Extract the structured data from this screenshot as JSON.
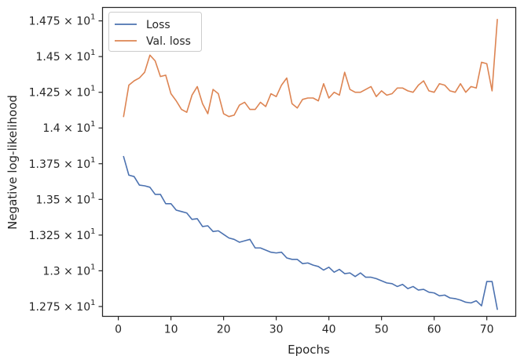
{
  "chart_data": {
    "type": "line",
    "title": "",
    "xlabel": "Epochs",
    "ylabel": "Negative log-likelihood",
    "xlim": [
      -3,
      75.5
    ],
    "ylim": [
      12.681,
      14.844
    ],
    "xticks": [
      0,
      10,
      20,
      30,
      40,
      50,
      60,
      70
    ],
    "yticks": [
      {
        "value": 12.75,
        "mantissa": "1.275",
        "base": "10",
        "exp": "1"
      },
      {
        "value": 13.0,
        "mantissa": "1.3",
        "base": "10",
        "exp": "1"
      },
      {
        "value": 13.25,
        "mantissa": "1.325",
        "base": "10",
        "exp": "1"
      },
      {
        "value": 13.5,
        "mantissa": "1.35",
        "base": "10",
        "exp": "1"
      },
      {
        "value": 13.75,
        "mantissa": "1.375",
        "base": "10",
        "exp": "1"
      },
      {
        "value": 14.0,
        "mantissa": "1.4",
        "base": "10",
        "exp": "1"
      },
      {
        "value": 14.25,
        "mantissa": "1.425",
        "base": "10",
        "exp": "1"
      },
      {
        "value": 14.5,
        "mantissa": "1.45",
        "base": "10",
        "exp": "1"
      },
      {
        "value": 14.75,
        "mantissa": "1.475",
        "base": "10",
        "exp": "1"
      }
    ],
    "grid": false,
    "legend_position": "top-left",
    "series": [
      {
        "name": "Loss",
        "color": "#4c72b0",
        "x": [
          1,
          2,
          3,
          4,
          5,
          6,
          7,
          8,
          9,
          10,
          11,
          12,
          13,
          14,
          15,
          16,
          17,
          18,
          19,
          20,
          21,
          22,
          23,
          24,
          25,
          26,
          27,
          28,
          29,
          30,
          31,
          32,
          33,
          34,
          35,
          36,
          37,
          38,
          39,
          40,
          41,
          42,
          43,
          44,
          45,
          46,
          47,
          48,
          49,
          50,
          51,
          52,
          53,
          54,
          55,
          56,
          57,
          58,
          59,
          60,
          61,
          62,
          63,
          64,
          65,
          66,
          67,
          68,
          69,
          70,
          71,
          72
        ],
        "values": [
          13.8,
          13.67,
          13.66,
          13.6,
          13.595,
          13.585,
          13.535,
          13.535,
          13.47,
          13.47,
          13.425,
          13.415,
          13.405,
          13.36,
          13.365,
          13.31,
          13.315,
          13.275,
          13.28,
          13.255,
          13.23,
          13.22,
          13.2,
          13.21,
          13.22,
          13.16,
          13.16,
          13.145,
          13.13,
          13.125,
          13.13,
          13.09,
          13.08,
          13.08,
          13.05,
          13.055,
          13.04,
          13.03,
          13.005,
          13.025,
          12.99,
          13.01,
          12.98,
          12.985,
          12.96,
          12.985,
          12.955,
          12.955,
          12.945,
          12.93,
          12.915,
          12.91,
          12.89,
          12.905,
          12.875,
          12.89,
          12.865,
          12.87,
          12.85,
          12.845,
          12.825,
          12.83,
          12.81,
          12.805,
          12.795,
          12.78,
          12.775,
          12.79,
          12.755,
          12.925,
          12.925,
          12.73
        ]
      },
      {
        "name": "Val. loss",
        "color": "#dd8452",
        "x": [
          1,
          2,
          3,
          4,
          5,
          6,
          7,
          8,
          9,
          10,
          11,
          12,
          13,
          14,
          15,
          16,
          17,
          18,
          19,
          20,
          21,
          22,
          23,
          24,
          25,
          26,
          27,
          28,
          29,
          30,
          31,
          32,
          33,
          34,
          35,
          36,
          37,
          38,
          39,
          40,
          41,
          42,
          43,
          44,
          45,
          46,
          47,
          48,
          49,
          50,
          51,
          52,
          53,
          54,
          55,
          56,
          57,
          58,
          59,
          60,
          61,
          62,
          63,
          64,
          65,
          66,
          67,
          68,
          69,
          70,
          71,
          72
        ],
        "values": [
          14.08,
          14.3,
          14.33,
          14.35,
          14.39,
          14.51,
          14.47,
          14.36,
          14.37,
          14.24,
          14.19,
          14.13,
          14.11,
          14.23,
          14.29,
          14.17,
          14.1,
          14.27,
          14.24,
          14.1,
          14.08,
          14.09,
          14.16,
          14.18,
          14.13,
          14.13,
          14.18,
          14.15,
          14.24,
          14.22,
          14.3,
          14.35,
          14.17,
          14.14,
          14.2,
          14.21,
          14.21,
          14.19,
          14.31,
          14.21,
          14.25,
          14.23,
          14.39,
          14.27,
          14.25,
          14.25,
          14.27,
          14.29,
          14.22,
          14.26,
          14.23,
          14.24,
          14.28,
          14.28,
          14.26,
          14.25,
          14.3,
          14.33,
          14.26,
          14.25,
          14.31,
          14.3,
          14.26,
          14.25,
          14.31,
          14.25,
          14.29,
          14.28,
          14.46,
          14.45,
          14.26,
          14.76
        ]
      }
    ]
  }
}
